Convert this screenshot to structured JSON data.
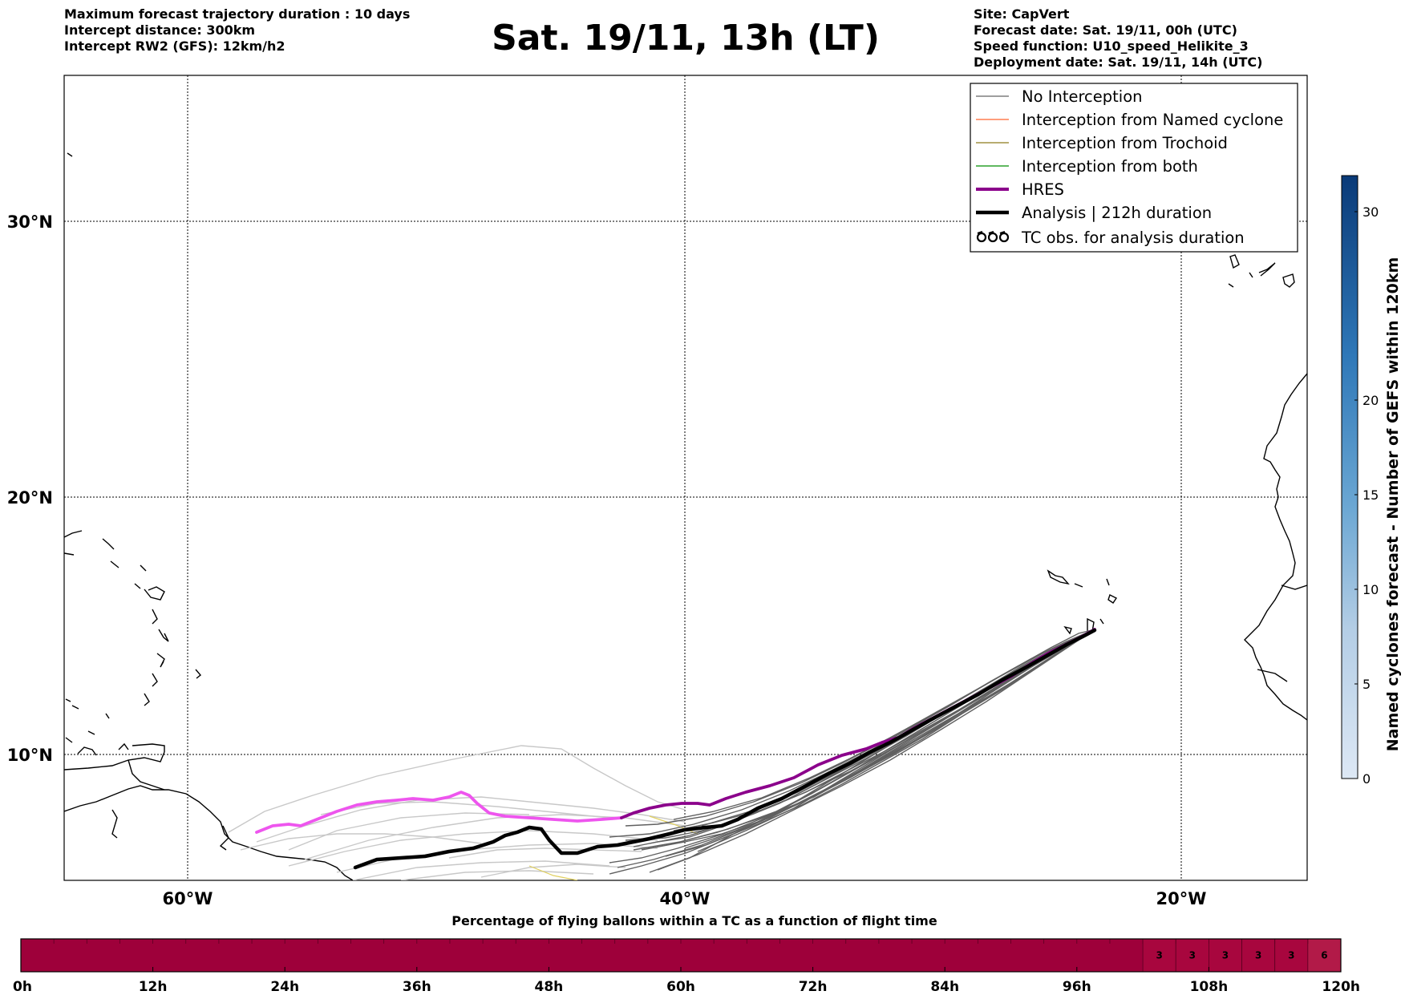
{
  "header": {
    "left": [
      "Maximum forecast trajectory duration : 10 days",
      "Intercept distance: 300km",
      "Intercept RW2 (GFS):  12km/h2"
    ],
    "title": "Sat. 19/11, 13h (LT)",
    "right": [
      "Site: CapVert",
      "Forecast date: Sat. 19/11, 00h (UTC)",
      "Speed function: U10_speed_Helikite_3",
      "Deployment date: Sat. 19/11, 14h (UTC)"
    ]
  },
  "colors": {
    "no_interception": "#7f7f7f",
    "named_cyclone": "#ff7f50",
    "trochoid": "#a09040",
    "both": "#2ca02c",
    "hres": "#8b008b",
    "hres_early": "#ee55ee",
    "analysis": "#000000",
    "ensemble_light": "#c8c8c8",
    "ensemble_dark": "#606060",
    "bar_fill": "#9e003a",
    "bar_fill_light": "#b21a48"
  },
  "legend": {
    "items": [
      {
        "label": "No Interception",
        "color": "#7f7f7f",
        "style": "thin"
      },
      {
        "label": "Interception from Named cyclone",
        "color": "#ff7f50",
        "style": "thin"
      },
      {
        "label": "Interception from Trochoid",
        "color": "#a09040",
        "style": "thin"
      },
      {
        "label": "Interception from both",
        "color": "#2ca02c",
        "style": "thin"
      },
      {
        "label": "HRES",
        "color": "#8b008b",
        "style": "thick"
      },
      {
        "label": "Analysis | 212h duration",
        "color": "#000000",
        "style": "thick"
      },
      {
        "label": "TC obs. for analysis duration",
        "color": "#000000",
        "style": "tc-symbol"
      }
    ]
  },
  "map": {
    "lat_labels": [
      "30°N",
      "20°N",
      "10°N"
    ],
    "lon_labels": [
      "60°W",
      "40°W",
      "20°W"
    ]
  },
  "colorbar": {
    "title": "Named cyclones forecast - Number of GEFS within 120km",
    "ticks": [
      "0",
      "5",
      "10",
      "15",
      "20",
      "30"
    ]
  },
  "chart_data": [
    {
      "type": "line",
      "xlabel": "",
      "ylabel": "",
      "x_ticks": [
        "60°W",
        "40°W",
        "20°W"
      ],
      "y_ticks": [
        "30°N",
        "20°N",
        "10°N"
      ],
      "xlim": [
        -65,
        -15
      ],
      "ylim": [
        5.4,
        34.7
      ],
      "grid": true,
      "legend_placement": "top-right",
      "series": [
        {
          "name": "HRES",
          "x": [
            -23.3,
            -25.4,
            -28.0,
            -30.5,
            -32.5,
            -34.8,
            -37.0,
            -39.0,
            -39.6,
            -40.9,
            -42.2,
            -44.0,
            -46.0,
            -47.8,
            -48.8,
            -49.6,
            -51.3,
            -53.7,
            -56.2,
            -57.4
          ],
          "y": [
            14.7,
            13.8,
            12.1,
            10.6,
            10.1,
            8.9,
            8.1,
            7.6,
            8.0,
            8.0,
            7.9,
            7.5,
            7.4,
            7.5,
            8.0,
            8.5,
            8.0,
            7.5,
            6.9,
            6.8
          ]
        },
        {
          "name": "Analysis | 212h duration",
          "x": [
            -23.3,
            -26.0,
            -28.5,
            -31.0,
            -33.3,
            -35.5,
            -37.0,
            -38.8,
            -40.6,
            -42.3,
            -43.9,
            -44.6,
            -45.5,
            -46.8,
            -48.4,
            -50.0,
            -51.5,
            -53.3
          ],
          "y": [
            14.6,
            13.1,
            11.6,
            10.1,
            9.0,
            8.0,
            7.5,
            7.0,
            6.8,
            6.3,
            6.1,
            6.5,
            7.0,
            6.6,
            6.3,
            6.0,
            5.9,
            5.6
          ]
        }
      ]
    },
    {
      "type": "heatmap",
      "title": "Percentage of flying ballons within a TC as a function of flight time",
      "x_ticks": [
        "0h",
        "12h",
        "24h",
        "36h",
        "48h",
        "60h",
        "72h",
        "84h",
        "96h",
        "108h",
        "120h"
      ],
      "hours": [
        102,
        105,
        108,
        111,
        114,
        117
      ],
      "values": [
        "3",
        "3",
        "3",
        "3",
        "3",
        "6"
      ]
    }
  ]
}
